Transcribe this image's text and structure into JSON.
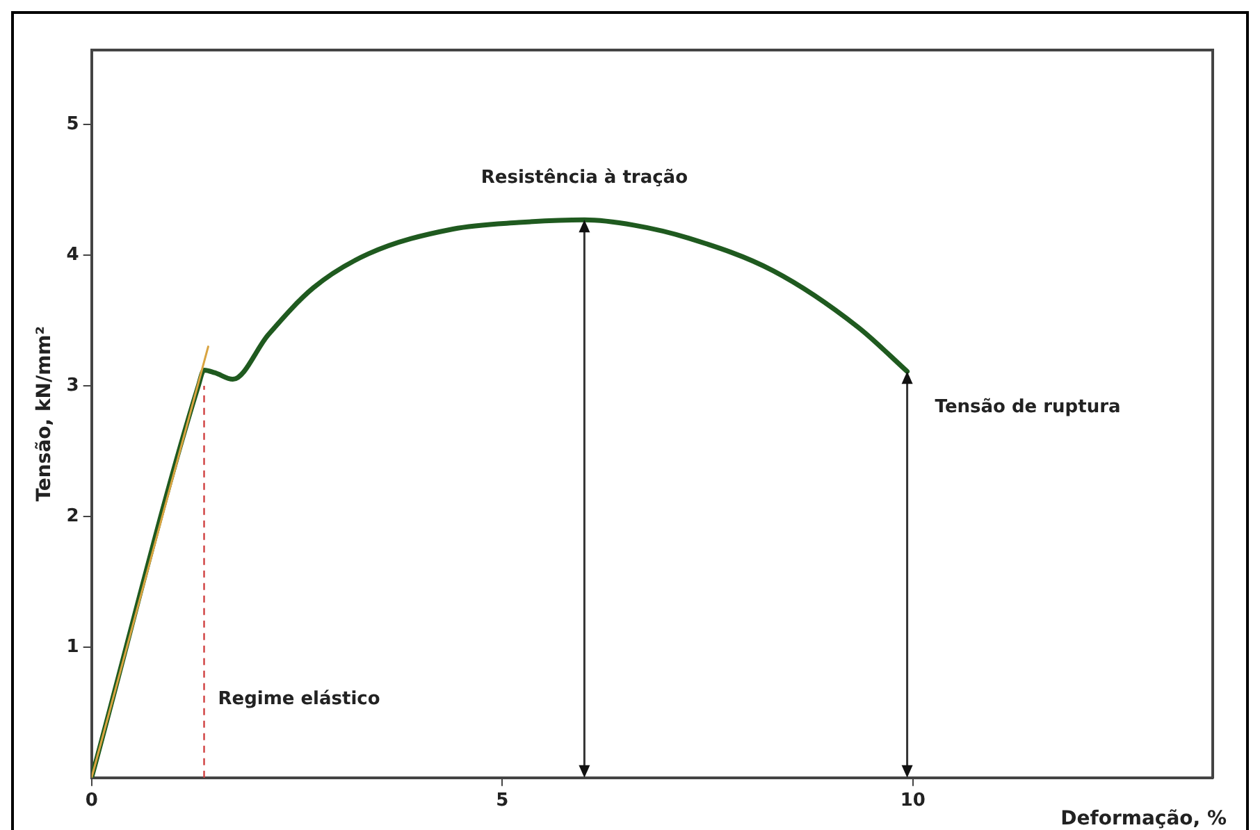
{
  "chart_data": {
    "type": "line",
    "xlabel": "Deformação, %",
    "ylabel": "Tensão, kN/mm²",
    "xlim": [
      0,
      13.65
    ],
    "ylim": [
      0,
      5.57
    ],
    "xticks": [
      0,
      5,
      10
    ],
    "yticks": [
      1,
      2,
      3,
      4,
      5
    ],
    "grid": false,
    "legend": false,
    "marker": "none",
    "series": [
      {
        "color": "#1f5a1f",
        "x": [
          0,
          1.3,
          1.37,
          1.5,
          1.72,
          2.15,
          2.7,
          3.37,
          4.4,
          5.2,
          6.0,
          6.6,
          7.27,
          8.3,
          9.33,
          9.93
        ],
        "values": [
          0,
          3.0,
          3.12,
          3.1,
          3.05,
          3.39,
          3.75,
          4.01,
          4.2,
          4.25,
          4.27,
          4.23,
          4.13,
          3.88,
          3.45,
          3.11
        ]
      },
      {
        "color": "#d9a441",
        "x": [
          0,
          1.42
        ],
        "values": [
          0,
          3.3
        ]
      }
    ],
    "ref_lines": [
      {
        "axis": "x",
        "value": 1.37,
        "label": "Regime elástico",
        "color": "#d04040",
        "line_style": "dashed"
      }
    ],
    "annotations": [
      {
        "text": "Resistência à tração",
        "x": 6.0,
        "y": 4.27
      },
      {
        "text": "Tensão de ruptura",
        "x": 9.93,
        "y": 3.11
      }
    ]
  }
}
